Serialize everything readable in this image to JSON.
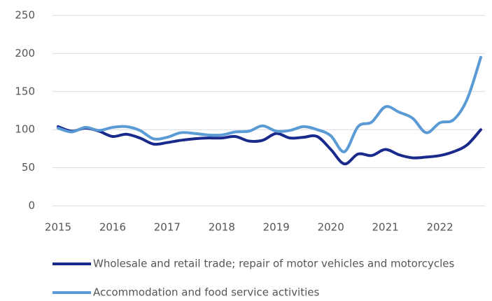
{
  "chart_data": {
    "type": "line",
    "categories": [
      "2015",
      null,
      null,
      null,
      "2016",
      null,
      null,
      null,
      "2017",
      null,
      null,
      null,
      "2018",
      null,
      null,
      null,
      "2019",
      null,
      null,
      null,
      "2020",
      null,
      null,
      null,
      "2021",
      null,
      null,
      null,
      "2022",
      null,
      null,
      null
    ],
    "series": [
      {
        "name": "Wholesale and retail trade; repair of motor vehicles and motorcycles",
        "color": "#1a2a8c",
        "values": [
          104,
          98,
          102,
          98,
          91,
          94,
          89,
          81,
          83,
          86,
          88,
          89,
          89,
          91,
          85,
          86,
          95,
          89,
          90,
          91,
          74,
          55,
          68,
          66,
          74,
          67,
          63,
          64,
          66,
          71,
          80,
          100
        ]
      },
      {
        "name": "Accommodation and food service activities",
        "color": "#5b9bd5",
        "values": [
          102,
          97,
          103,
          99,
          103,
          104,
          99,
          88,
          90,
          96,
          95,
          93,
          93,
          97,
          98,
          105,
          98,
          99,
          104,
          100,
          92,
          71,
          104,
          110,
          130,
          123,
          115,
          96,
          109,
          113,
          140,
          195
        ]
      }
    ],
    "ylim": [
      0,
      250
    ],
    "yticks": [
      0,
      50,
      100,
      150,
      200,
      250
    ],
    "grid": true
  }
}
